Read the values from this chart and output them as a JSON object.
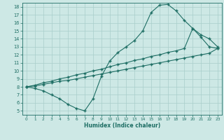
{
  "xlabel": "Humidex (Indice chaleur)",
  "bg_color": "#cde8e5",
  "grid_color": "#a8ceca",
  "line_color": "#1e6e64",
  "xlim": [
    -0.5,
    23.5
  ],
  "ylim": [
    4.5,
    18.5
  ],
  "xticks": [
    0,
    1,
    2,
    3,
    4,
    5,
    6,
    7,
    8,
    9,
    10,
    11,
    12,
    13,
    14,
    15,
    16,
    17,
    18,
    19,
    20,
    21,
    22,
    23
  ],
  "yticks": [
    5,
    6,
    7,
    8,
    9,
    10,
    11,
    12,
    13,
    14,
    15,
    16,
    17,
    18
  ],
  "line1_x": [
    0,
    1,
    2,
    3,
    4,
    5,
    6,
    7,
    8,
    9,
    10,
    11,
    12,
    13,
    14,
    15,
    16,
    17,
    18,
    19,
    20,
    21,
    22,
    23
  ],
  "line1_y": [
    8.0,
    7.8,
    7.5,
    7.0,
    6.5,
    5.8,
    5.3,
    5.0,
    6.5,
    9.3,
    11.2,
    12.3,
    13.0,
    13.8,
    15.0,
    17.3,
    18.2,
    18.3,
    17.5,
    16.3,
    15.3,
    14.2,
    13.0,
    12.8
  ],
  "line2_x": [
    0,
    1,
    2,
    3,
    4,
    5,
    6,
    7,
    8,
    9,
    10,
    11,
    12,
    13,
    14,
    15,
    16,
    17,
    18,
    19,
    20,
    21,
    22,
    23
  ],
  "line2_y": [
    8.0,
    8.2,
    8.5,
    8.7,
    9.0,
    9.2,
    9.5,
    9.7,
    10.0,
    10.2,
    10.5,
    10.8,
    11.0,
    11.3,
    11.5,
    11.8,
    12.0,
    12.3,
    12.5,
    12.8,
    15.3,
    14.5,
    14.0,
    13.0
  ],
  "line3_x": [
    0,
    1,
    2,
    3,
    4,
    5,
    6,
    7,
    8,
    9,
    10,
    11,
    12,
    13,
    14,
    15,
    16,
    17,
    18,
    19,
    20,
    21,
    22,
    23
  ],
  "line3_y": [
    8.0,
    8.1,
    8.3,
    8.5,
    8.7,
    8.8,
    9.0,
    9.2,
    9.4,
    9.6,
    9.8,
    10.0,
    10.2,
    10.4,
    10.6,
    10.8,
    11.0,
    11.2,
    11.4,
    11.6,
    11.8,
    12.0,
    12.2,
    12.8
  ]
}
